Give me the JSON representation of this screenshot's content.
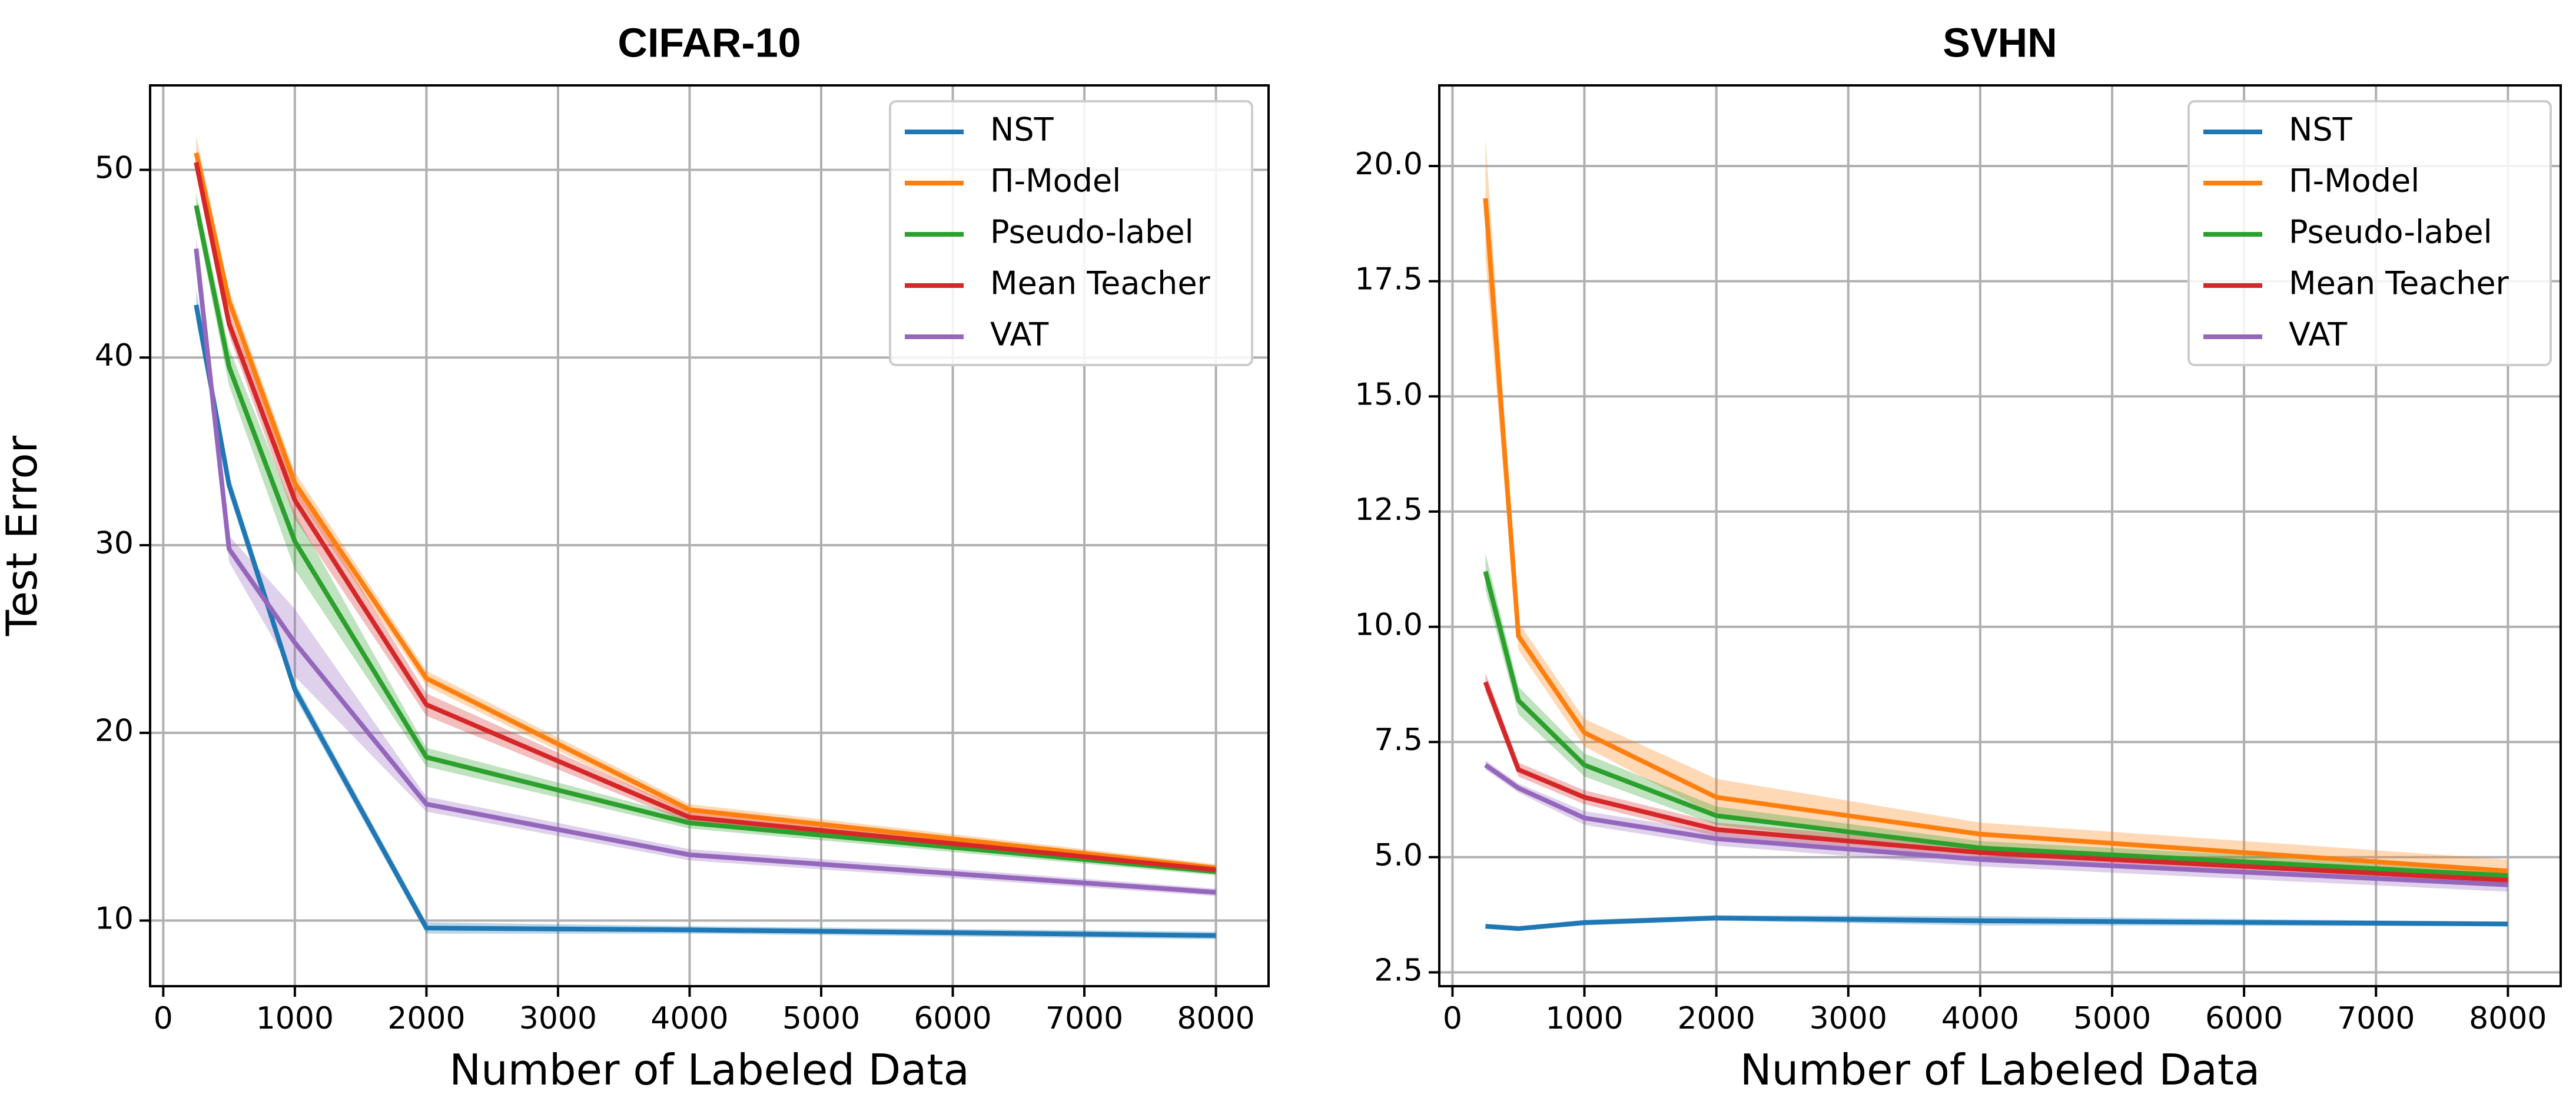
{
  "chart_data": [
    {
      "type": "line",
      "title": "CIFAR-10",
      "xlabel": "Number of Labeled Data",
      "ylabel": "Test Error",
      "xlim": [
        -100,
        8400
      ],
      "ylim": [
        6.5,
        54.5
      ],
      "xticks": [
        0,
        1000,
        2000,
        3000,
        4000,
        5000,
        6000,
        7000,
        8000
      ],
      "yticks": [
        10,
        20,
        30,
        40,
        50
      ],
      "ytick_labels": [
        "10",
        "20",
        "30",
        "40",
        "50"
      ],
      "grid": true,
      "legend_position": "top-right",
      "x": [
        250,
        500,
        1000,
        2000,
        4000,
        8000
      ],
      "series": [
        {
          "name": "NST",
          "color": "#1f77b4",
          "values": [
            42.8,
            33.2,
            22.3,
            9.6,
            9.5,
            9.2
          ],
          "band": [
            0.8,
            0.5,
            0.4,
            0.3,
            0.2,
            0.2
          ]
        },
        {
          "name": "Π-Model",
          "color": "#ff7f0e",
          "values": [
            50.9,
            43.0,
            33.3,
            22.9,
            15.9,
            12.8
          ],
          "band": [
            0.9,
            0.6,
            0.6,
            0.4,
            0.3,
            0.2
          ]
        },
        {
          "name": "Pseudo-label",
          "color": "#2ca02c",
          "values": [
            48.1,
            39.5,
            30.2,
            18.7,
            15.2,
            12.6
          ],
          "band": [
            0.7,
            1.0,
            1.5,
            0.5,
            0.3,
            0.2
          ]
        },
        {
          "name": "Mean Teacher",
          "color": "#d62728",
          "values": [
            50.4,
            41.8,
            32.4,
            21.5,
            15.5,
            12.7
          ],
          "band": [
            0.6,
            0.6,
            1.0,
            0.6,
            0.3,
            0.2
          ]
        },
        {
          "name": "VAT",
          "color": "#9467bd",
          "values": [
            45.8,
            29.8,
            24.8,
            16.2,
            13.5,
            11.5
          ],
          "band": [
            0.6,
            0.7,
            1.8,
            0.4,
            0.3,
            0.2
          ]
        }
      ]
    },
    {
      "type": "line",
      "title": "SVHN",
      "xlabel": "Number of Labeled Data",
      "ylabel": "",
      "xlim": [
        -100,
        8400
      ],
      "ylim": [
        2.2,
        21.75
      ],
      "xticks": [
        0,
        1000,
        2000,
        3000,
        4000,
        5000,
        6000,
        7000,
        8000
      ],
      "yticks": [
        2.5,
        5.0,
        7.5,
        10.0,
        12.5,
        15.0,
        17.5,
        20.0
      ],
      "ytick_labels": [
        "2.5",
        "5.0",
        "7.5",
        "10.0",
        "12.5",
        "15.0",
        "17.5",
        "20.0"
      ],
      "grid": true,
      "legend_position": "top-right",
      "x": [
        250,
        500,
        1000,
        2000,
        4000,
        8000
      ],
      "series": [
        {
          "name": "NST",
          "color": "#1f77b4",
          "values": [
            3.5,
            3.45,
            3.58,
            3.68,
            3.62,
            3.55
          ],
          "band": [
            0.05,
            0.05,
            0.06,
            0.06,
            0.1,
            0.05
          ]
        },
        {
          "name": "Π-Model",
          "color": "#ff7f0e",
          "values": [
            19.3,
            9.8,
            7.7,
            6.3,
            5.5,
            4.7
          ],
          "band": [
            1.3,
            0.3,
            0.3,
            0.4,
            0.25,
            0.25
          ]
        },
        {
          "name": "Pseudo-label",
          "color": "#2ca02c",
          "values": [
            11.2,
            8.4,
            7.0,
            5.9,
            5.2,
            4.6
          ],
          "band": [
            0.4,
            0.3,
            0.25,
            0.2,
            0.15,
            0.15
          ]
        },
        {
          "name": "Mean Teacher",
          "color": "#d62728",
          "values": [
            8.8,
            6.9,
            6.3,
            5.6,
            5.1,
            4.5
          ],
          "band": [
            0.2,
            0.15,
            0.15,
            0.15,
            0.15,
            0.15
          ]
        },
        {
          "name": "VAT",
          "color": "#9467bd",
          "values": [
            7.0,
            6.5,
            5.85,
            5.4,
            4.95,
            4.4
          ],
          "band": [
            0.1,
            0.1,
            0.15,
            0.15,
            0.15,
            0.15
          ]
        }
      ]
    }
  ]
}
